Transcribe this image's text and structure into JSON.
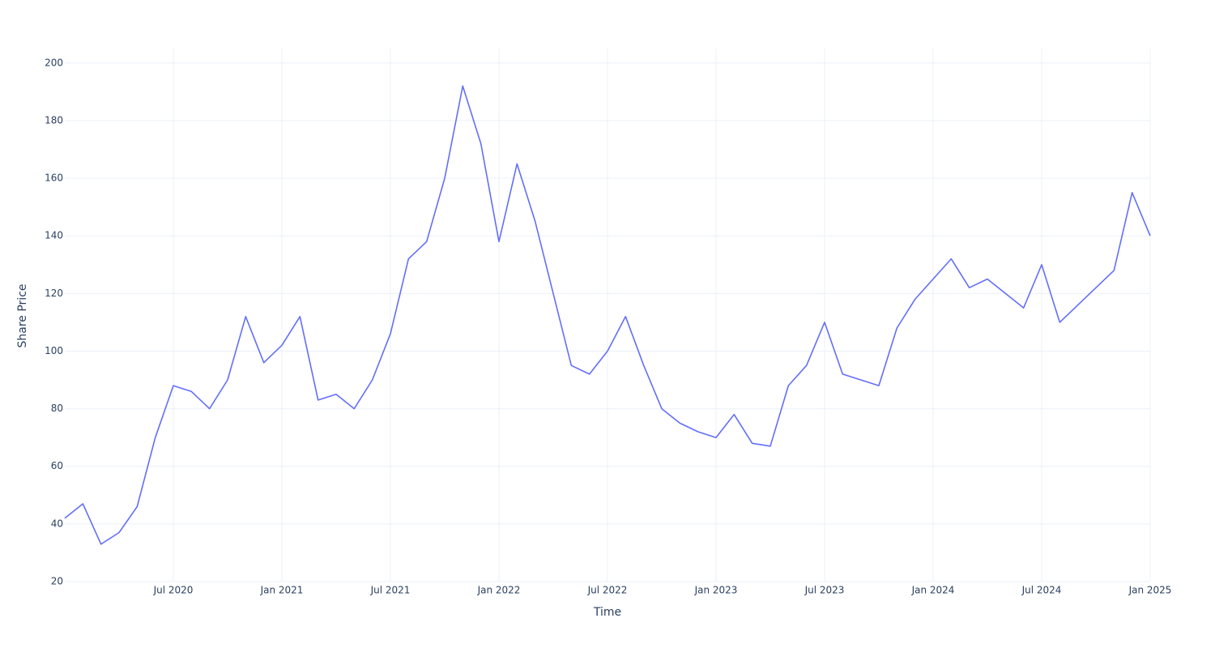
{
  "chart_data": {
    "type": "line",
    "xlabel": "Time",
    "ylabel": "Share Price",
    "x": [
      "2020-01",
      "2020-02",
      "2020-03",
      "2020-04",
      "2020-05",
      "2020-06",
      "2020-07",
      "2020-08",
      "2020-09",
      "2020-10",
      "2020-11",
      "2020-12",
      "2021-01",
      "2021-02",
      "2021-03",
      "2021-04",
      "2021-05",
      "2021-06",
      "2021-07",
      "2021-08",
      "2021-09",
      "2021-10",
      "2021-11",
      "2021-12",
      "2022-01",
      "2022-02",
      "2022-03",
      "2022-04",
      "2022-05",
      "2022-06",
      "2022-07",
      "2022-08",
      "2022-09",
      "2022-10",
      "2022-11",
      "2022-12",
      "2023-01",
      "2023-02",
      "2023-03",
      "2023-04",
      "2023-05",
      "2023-06",
      "2023-07",
      "2023-08",
      "2023-09",
      "2023-10",
      "2023-11",
      "2023-12",
      "2024-01",
      "2024-02",
      "2024-03",
      "2024-04",
      "2024-05",
      "2024-06",
      "2024-07",
      "2024-08",
      "2024-09",
      "2024-10",
      "2024-11",
      "2024-12",
      "2025-01"
    ],
    "series": [
      {
        "color": "#636efa",
        "values": [
          42,
          47,
          33,
          37,
          46,
          70,
          88,
          86,
          80,
          90,
          112,
          96,
          102,
          112,
          83,
          85,
          80,
          90,
          106,
          132,
          138,
          160,
          192,
          172,
          138,
          165,
          145,
          120,
          95,
          92,
          100,
          112,
          95,
          80,
          75,
          72,
          70,
          78,
          68,
          67,
          88,
          95,
          110,
          92,
          90,
          88,
          108,
          118,
          125,
          132,
          122,
          125,
          120,
          115,
          130,
          110,
          116,
          122,
          128,
          155,
          140
        ]
      }
    ],
    "xlim": [
      "2020-01",
      "2025-01"
    ],
    "xticks": [
      {
        "value": "2020-07",
        "label": "Jul 2020"
      },
      {
        "value": "2021-01",
        "label": "Jan 2021"
      },
      {
        "value": "2021-07",
        "label": "Jul 2021"
      },
      {
        "value": "2022-01",
        "label": "Jan 2022"
      },
      {
        "value": "2022-07",
        "label": "Jul 2022"
      },
      {
        "value": "2023-01",
        "label": "Jan 2023"
      },
      {
        "value": "2023-07",
        "label": "Jul 2023"
      },
      {
        "value": "2024-01",
        "label": "Jan 2024"
      },
      {
        "value": "2024-07",
        "label": "Jul 2024"
      },
      {
        "value": "2025-01",
        "label": "Jan 2025"
      }
    ],
    "ylim": [
      20,
      205
    ],
    "yticks": [
      20,
      40,
      60,
      80,
      100,
      120,
      140,
      160,
      180,
      200
    ],
    "grid": true
  }
}
